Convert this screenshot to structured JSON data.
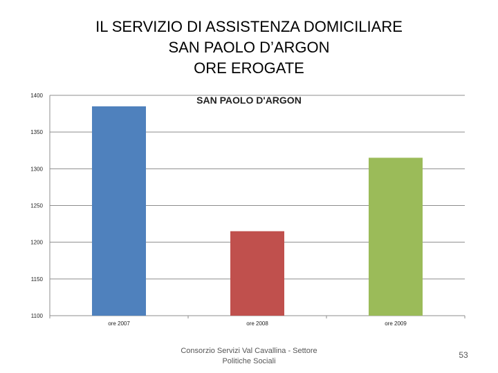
{
  "slide": {
    "title_lines": [
      "IL SERVIZIO DI ASSISTENZA DOMICILIARE",
      "SAN PAOLO D’ARGON",
      "ORE EROGATE"
    ],
    "footer_lines": [
      "Consorzio Servizi Val Cavallina - Settore",
      "Politiche Sociali"
    ],
    "page_number": "53"
  },
  "chart_data": {
    "type": "bar",
    "title": "SAN PAOLO D'ARGON",
    "categories": [
      "ore 2007",
      "ore 2008",
      "ore 2009"
    ],
    "values": [
      1385,
      1215,
      1315
    ],
    "colors": [
      "#4f81bd",
      "#c0504d",
      "#9bbb59"
    ],
    "ylim": [
      1100,
      1400
    ],
    "yticks": [
      1100,
      1150,
      1200,
      1250,
      1300,
      1350,
      1400
    ],
    "grid": true,
    "legend": "none",
    "xlabel": "",
    "ylabel": ""
  }
}
